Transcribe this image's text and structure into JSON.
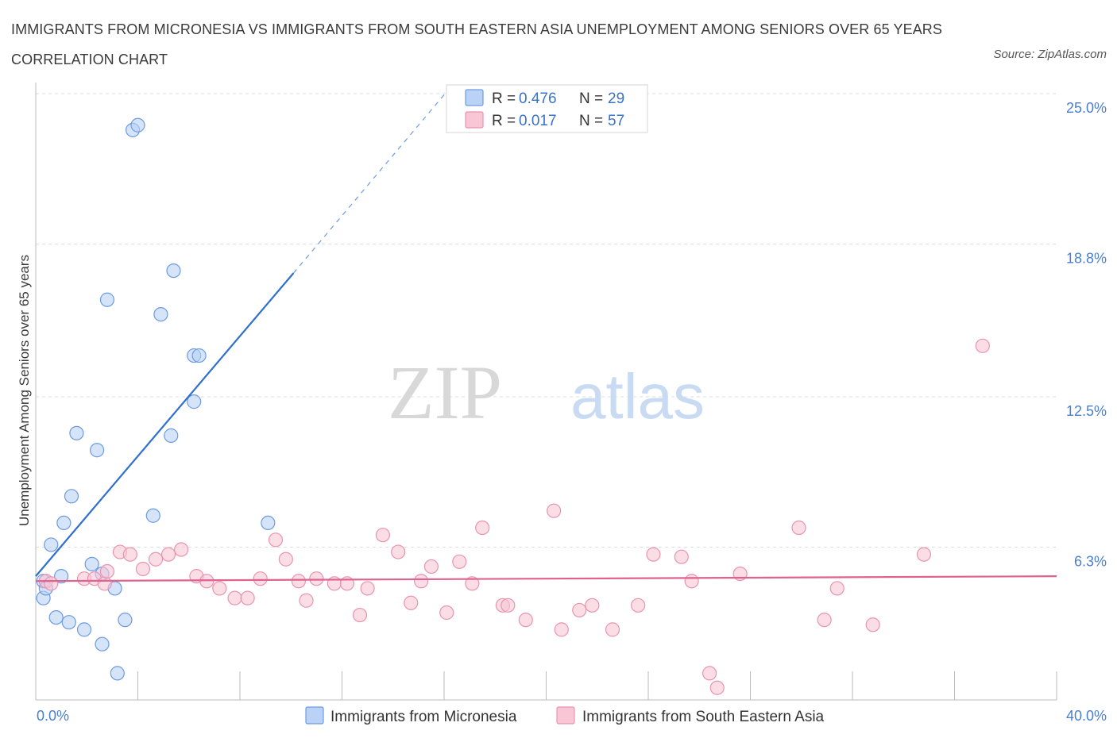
{
  "title": "IMMIGRANTS FROM MICRONESIA VS IMMIGRANTS FROM SOUTH EASTERN ASIA UNEMPLOYMENT AMONG SENIORS OVER 65 YEARS CORRELATION CHART",
  "source": "Source: ZipAtlas.com",
  "watermark": {
    "zip": "ZIP",
    "atlas": "atlas"
  },
  "legend_box": {
    "row1": {
      "r_label": "R =",
      "r_value": "0.476",
      "n_label": "N =",
      "n_value": "29"
    },
    "row2": {
      "r_label": "R =",
      "r_value": "0.017",
      "n_label": "N =",
      "n_value": "57"
    }
  },
  "colors": {
    "micronesia_fill": "#b9d2f5",
    "micronesia_stroke": "#6d9be0",
    "micronesia_line": "#2f6fd0",
    "sea_fill": "#f9c6d6",
    "sea_stroke": "#e894b0",
    "sea_line": "#e0628e",
    "grid": "#dddddd",
    "axis_text": "#4a7fd0"
  },
  "chart_data": {
    "type": "scatter",
    "title": "IMMIGRANTS FROM MICRONESIA VS IMMIGRANTS FROM SOUTH EASTERN ASIA UNEMPLOYMENT AMONG SENIORS OVER 65 YEARS CORRELATION CHART",
    "xlabel": "",
    "ylabel": "Unemployment Among Seniors over 65 years",
    "xlim": [
      0,
      40
    ],
    "ylim": [
      0,
      25
    ],
    "x_tick_labels": [
      "0.0%",
      "40.0%"
    ],
    "y_ticks": [
      6.3,
      12.5,
      18.8,
      25.0
    ],
    "y_tick_labels": [
      "6.3%",
      "12.5%",
      "18.8%",
      "25.0%"
    ],
    "grid": true,
    "legend_position": "bottom",
    "series": [
      {
        "name": "Immigrants from Micronesia",
        "R": 0.476,
        "N": 29,
        "points": [
          [
            0.3,
            4.2
          ],
          [
            0.3,
            4.9
          ],
          [
            0.4,
            4.6
          ],
          [
            0.6,
            6.4
          ],
          [
            0.8,
            3.4
          ],
          [
            1.0,
            5.1
          ],
          [
            1.1,
            7.3
          ],
          [
            1.3,
            3.2
          ],
          [
            1.4,
            8.4
          ],
          [
            1.6,
            11.0
          ],
          [
            1.9,
            2.9
          ],
          [
            2.2,
            5.6
          ],
          [
            2.4,
            10.3
          ],
          [
            2.6,
            5.2
          ],
          [
            2.6,
            2.3
          ],
          [
            2.8,
            16.5
          ],
          [
            3.1,
            4.6
          ],
          [
            3.2,
            1.1
          ],
          [
            3.5,
            3.3
          ],
          [
            3.8,
            23.5
          ],
          [
            4.0,
            23.7
          ],
          [
            4.6,
            7.6
          ],
          [
            4.9,
            15.9
          ],
          [
            5.3,
            10.9
          ],
          [
            5.4,
            17.7
          ],
          [
            6.2,
            14.2
          ],
          [
            6.2,
            12.3
          ],
          [
            6.4,
            14.2
          ],
          [
            9.1,
            7.3
          ]
        ],
        "trend": {
          "x": [
            0.0,
            10.1
          ],
          "y": [
            5.1,
            17.6
          ]
        },
        "trend_extension": {
          "x": [
            10.1,
            16.2
          ],
          "y": [
            17.6,
            25.2
          ]
        }
      },
      {
        "name": "Immigrants from South Eastern Asia",
        "R": 0.017,
        "N": 57,
        "points": [
          [
            0.4,
            4.9
          ],
          [
            0.6,
            4.8
          ],
          [
            1.9,
            5.0
          ],
          [
            2.3,
            5.0
          ],
          [
            2.7,
            4.8
          ],
          [
            2.8,
            5.3
          ],
          [
            3.3,
            6.1
          ],
          [
            3.7,
            6.0
          ],
          [
            4.2,
            5.4
          ],
          [
            4.7,
            5.8
          ],
          [
            5.2,
            6.0
          ],
          [
            5.7,
            6.2
          ],
          [
            6.3,
            5.1
          ],
          [
            6.7,
            4.9
          ],
          [
            7.2,
            4.6
          ],
          [
            7.8,
            4.2
          ],
          [
            8.3,
            4.2
          ],
          [
            8.8,
            5.0
          ],
          [
            9.4,
            6.6
          ],
          [
            9.8,
            5.8
          ],
          [
            10.3,
            4.9
          ],
          [
            10.6,
            4.1
          ],
          [
            11.0,
            5.0
          ],
          [
            11.7,
            4.8
          ],
          [
            12.2,
            4.8
          ],
          [
            12.7,
            3.5
          ],
          [
            13.0,
            4.6
          ],
          [
            13.6,
            6.8
          ],
          [
            14.2,
            6.1
          ],
          [
            14.7,
            4.0
          ],
          [
            15.1,
            4.9
          ],
          [
            15.5,
            5.5
          ],
          [
            16.1,
            3.6
          ],
          [
            16.6,
            5.7
          ],
          [
            17.1,
            4.8
          ],
          [
            17.5,
            7.1
          ],
          [
            18.3,
            3.9
          ],
          [
            18.5,
            3.9
          ],
          [
            19.2,
            3.3
          ],
          [
            20.3,
            7.8
          ],
          [
            20.6,
            2.9
          ],
          [
            21.3,
            3.7
          ],
          [
            21.8,
            3.9
          ],
          [
            22.6,
            2.9
          ],
          [
            23.6,
            3.9
          ],
          [
            24.2,
            6.0
          ],
          [
            25.3,
            5.9
          ],
          [
            25.7,
            4.9
          ],
          [
            26.4,
            1.1
          ],
          [
            26.7,
            0.5
          ],
          [
            27.6,
            5.2
          ],
          [
            29.9,
            7.1
          ],
          [
            30.9,
            3.3
          ],
          [
            31.4,
            4.6
          ],
          [
            32.8,
            3.1
          ],
          [
            34.8,
            6.0
          ],
          [
            37.1,
            14.6
          ]
        ],
        "trend": {
          "x": [
            0.0,
            40.0
          ],
          "y": [
            4.9,
            5.1
          ]
        }
      }
    ]
  }
}
